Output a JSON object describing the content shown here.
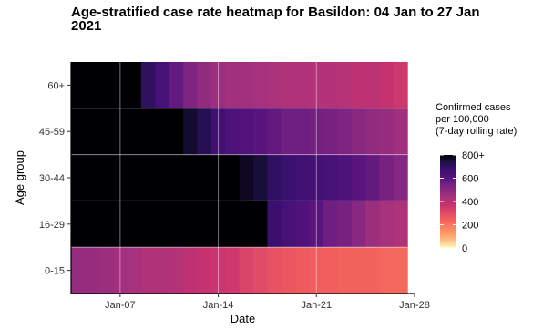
{
  "chart_data": {
    "type": "heatmap",
    "title": "Age-stratified case rate heatmap for Basildon: 04 Jan to 27 Jan 2021",
    "xlabel": "Date",
    "ylabel": "Age group",
    "dates": [
      "2021-01-04",
      "2021-01-05",
      "2021-01-06",
      "2021-01-07",
      "2021-01-08",
      "2021-01-09",
      "2021-01-10",
      "2021-01-11",
      "2021-01-12",
      "2021-01-13",
      "2021-01-14",
      "2021-01-15",
      "2021-01-16",
      "2021-01-17",
      "2021-01-18",
      "2021-01-19",
      "2021-01-20",
      "2021-01-21",
      "2021-01-22",
      "2021-01-23",
      "2021-01-24",
      "2021-01-25",
      "2021-01-26",
      "2021-01-27"
    ],
    "x_ticks": [
      {
        "date": "2021-01-07",
        "label": "Jan-07"
      },
      {
        "date": "2021-01-14",
        "label": "Jan-14"
      },
      {
        "date": "2021-01-21",
        "label": "Jan-21"
      },
      {
        "date": "2021-01-28",
        "label": "Jan-28"
      }
    ],
    "y_categories": [
      "0-15",
      "16-29",
      "30-44",
      "45-59",
      "60+"
    ],
    "series": [
      {
        "name": "60+",
        "values": [
          900,
          900,
          880,
          860,
          860,
          700,
          640,
          580,
          520,
          480,
          460,
          450,
          450,
          440,
          430,
          420,
          420,
          410,
          410,
          400,
          390,
          390,
          370,
          350
        ]
      },
      {
        "name": "45-59",
        "values": [
          900,
          900,
          900,
          900,
          900,
          900,
          900,
          860,
          760,
          720,
          660,
          620,
          610,
          600,
          580,
          560,
          560,
          550,
          540,
          520,
          500,
          480,
          470,
          450
        ]
      },
      {
        "name": "30-44",
        "values": [
          900,
          900,
          900,
          900,
          900,
          900,
          900,
          900,
          900,
          900,
          860,
          800,
          770,
          750,
          700,
          680,
          660,
          650,
          640,
          620,
          600,
          580,
          540,
          510
        ]
      },
      {
        "name": "16-29",
        "values": [
          900,
          900,
          900,
          900,
          900,
          900,
          900,
          900,
          900,
          900,
          900,
          900,
          900,
          900,
          680,
          640,
          620,
          600,
          560,
          540,
          500,
          460,
          440,
          420
        ]
      },
      {
        "name": "0-15",
        "values": [
          470,
          470,
          460,
          450,
          440,
          420,
          420,
          410,
          390,
          370,
          360,
          350,
          320,
          300,
          280,
          270,
          260,
          250,
          250,
          240,
          240,
          240,
          230,
          230
        ]
      }
    ],
    "legend": {
      "title_lines": [
        "Confirmed cases",
        "per 100,000",
        "(7-day rolling rate)"
      ],
      "ticks": [
        {
          "value": 0,
          "label": "0"
        },
        {
          "value": 200,
          "label": "200"
        },
        {
          "value": 400,
          "label": "400"
        },
        {
          "value": 600,
          "label": "600"
        },
        {
          "value": 800,
          "label": "800+"
        }
      ],
      "range": [
        0,
        800
      ],
      "colors": [
        "#fcfdbf",
        "#fec287",
        "#fd9a6a",
        "#fa7e5e",
        "#f1605d",
        "#de4968",
        "#c5326f",
        "#ab337c",
        "#8c2981",
        "#721f81",
        "#51127c",
        "#3b0f70",
        "#1d1147",
        "#000004"
      ]
    },
    "grid": true
  }
}
